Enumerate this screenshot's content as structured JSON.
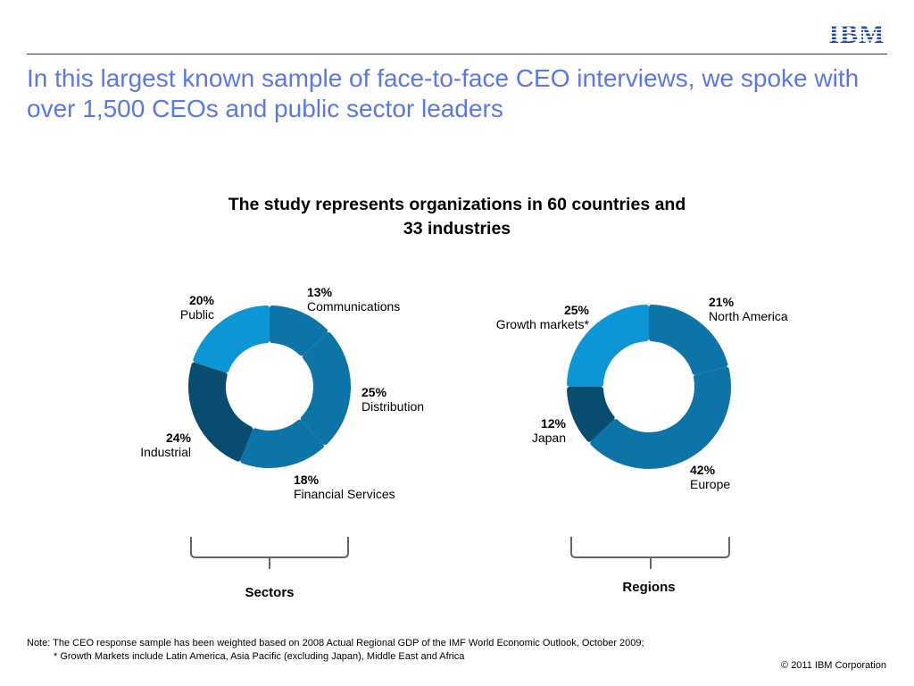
{
  "header": {
    "logo_text": "IBM",
    "headline": "In this largest known sample of face-to-face CEO interviews, we spoke with over 1,500 CEOs and public sector leaders"
  },
  "colors": {
    "headline": "#5a78e8",
    "logo": "#1f3fbd",
    "bright_blue": "#0d96d6",
    "mid_blue": "#0d74a8",
    "dark_blue": "#084d6f"
  },
  "chart_data": [
    {
      "type": "pie",
      "donut": true,
      "title": "The study represents organizations in 60 countries and 33 industries",
      "group_label": "Sectors",
      "slices": [
        {
          "label": "Communications",
          "value": 13,
          "value_label": "13%",
          "color": "#0d74a8"
        },
        {
          "label": "Distribution",
          "value": 25,
          "value_label": "25%",
          "color": "#0d74a8"
        },
        {
          "label": "Financial Services",
          "value": 18,
          "value_label": "18%",
          "color": "#0d74a8"
        },
        {
          "label": "Industrial",
          "value": 24,
          "value_label": "24%",
          "color": "#084d6f"
        },
        {
          "label": "Public",
          "value": 20,
          "value_label": "20%",
          "color": "#0d96d6"
        }
      ]
    },
    {
      "type": "pie",
      "donut": true,
      "group_label": "Regions",
      "slices": [
        {
          "label": "North America",
          "value": 21,
          "value_label": "21%",
          "color": "#0d74a8"
        },
        {
          "label": "Europe",
          "value": 42,
          "value_label": "42%",
          "color": "#0d74a8"
        },
        {
          "label": "Japan",
          "value": 12,
          "value_label": "12%",
          "color": "#084d6f"
        },
        {
          "label": "Growth markets*",
          "value": 25,
          "value_label": "25%",
          "color": "#0d96d6"
        }
      ]
    }
  ],
  "footer": {
    "note_line1": "Note: The CEO response sample has been weighted based on 2008 Actual Regional GDP of the IMF World Economic Outlook, October 2009;",
    "note_line2": "*  Growth Markets include Latin America, Asia Pacific (excluding Japan), Middle East and Africa",
    "copyright": "© 2011 IBM Corporation"
  }
}
